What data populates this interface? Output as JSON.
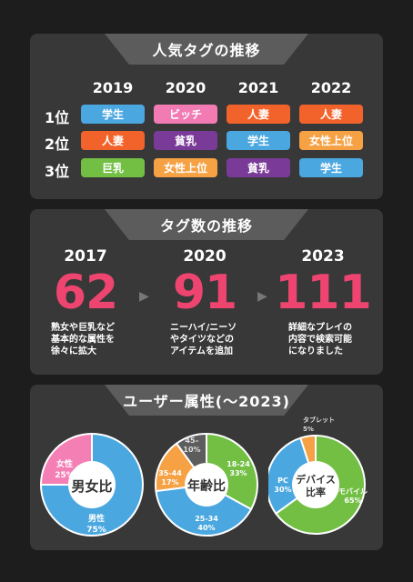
{
  "panel1": {
    "title": "人気タグの推移",
    "years": [
      "2019",
      "2020",
      "2021",
      "2022"
    ],
    "ranks": [
      "1位",
      "2位",
      "3位"
    ],
    "grid": [
      [
        {
          "text": "学生",
          "color": "#4aa7e0"
        },
        {
          "text": "ビッチ",
          "color": "#f27bb4"
        },
        {
          "text": "人妻",
          "color": "#f2632b"
        },
        {
          "text": "人妻",
          "color": "#f2632b"
        }
      ],
      [
        {
          "text": "人妻",
          "color": "#f2632b"
        },
        {
          "text": "貧乳",
          "color": "#7a3b98"
        },
        {
          "text": "学生",
          "color": "#4aa7e0"
        },
        {
          "text": "女性上位",
          "color": "#f5a144"
        }
      ],
      [
        {
          "text": "巨乳",
          "color": "#72bf44"
        },
        {
          "text": "女性上位",
          "color": "#f5a144"
        },
        {
          "text": "貧乳",
          "color": "#7a3b98"
        },
        {
          "text": "学生",
          "color": "#4aa7e0"
        }
      ]
    ]
  },
  "panel2": {
    "title": "タグ数の推移",
    "items": [
      {
        "year": "2017",
        "count": "62",
        "desc": [
          "熟女や巨乳など",
          "基本的な属性を",
          "徐々に拡大"
        ]
      },
      {
        "year": "2020",
        "count": "91",
        "desc": [
          "ニーハイ/ニーソ",
          "やタイツなどの",
          "アイテムを追加"
        ]
      },
      {
        "year": "2023",
        "count": "111",
        "desc": [
          "詳細なプレイの",
          "内容で検索可能",
          "になりました"
        ]
      }
    ]
  },
  "panel3": {
    "title": "ユーザー属性(〜2023)",
    "chart_data": [
      {
        "type": "pie",
        "title": "男女比",
        "slices": [
          {
            "name": "女性",
            "value": 25,
            "color": "#f47fb5"
          },
          {
            "name": "男性",
            "value": 75,
            "color": "#4aa7e0"
          }
        ]
      },
      {
        "type": "pie",
        "title": "年齢比",
        "slices": [
          {
            "name": "18-24",
            "value": 33,
            "color": "#72bf44"
          },
          {
            "name": "25-34",
            "value": 40,
            "color": "#4aa7e0"
          },
          {
            "name": "35-44",
            "value": 17,
            "color": "#f5a144"
          },
          {
            "name": "45-",
            "value": 10,
            "color": "#5d5d5d"
          }
        ],
        "extra_label": "45–\n10%"
      },
      {
        "type": "pie",
        "title": "デバイス比率",
        "slices": [
          {
            "name": "モバイル",
            "value": 65,
            "color": "#72bf44"
          },
          {
            "name": "PC",
            "value": 30,
            "color": "#4aa7e0"
          },
          {
            "name": "タブレット",
            "value": 5,
            "color": "#f5a144"
          }
        ]
      }
    ],
    "labels": {
      "pie1_center": "男女比",
      "pie1_female": [
        "女性",
        "25%"
      ],
      "pie1_male": [
        "男性",
        "75%"
      ],
      "pie2_center": "年齢比",
      "pie2_1824": [
        "18-24",
        "33%"
      ],
      "pie2_2534": [
        "25-34",
        "40%"
      ],
      "pie2_3544": [
        "35-44",
        "17%"
      ],
      "pie2_45": [
        "45–",
        "10%"
      ],
      "pie3_center": [
        "デバイス",
        "比率"
      ],
      "pie3_mobile": [
        "モバイル",
        "65%"
      ],
      "pie3_pc": [
        "PC",
        "30%"
      ],
      "pie3_tablet": [
        "タブレット",
        "5%"
      ]
    }
  }
}
